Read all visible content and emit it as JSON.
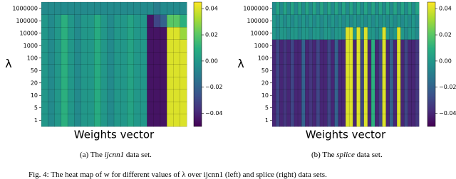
{
  "chart_data": [
    {
      "type": "heatmap",
      "x_label": "Weights vector",
      "y_label": "λ",
      "ycategories": [
        "1",
        "5",
        "10",
        "20",
        "50",
        "100",
        "1000",
        "10000",
        "100000",
        "1000000"
      ],
      "values": [
        [
          0,
          -0.005,
          0,
          0.01,
          0,
          -0.005,
          0,
          0,
          0.008,
          0,
          -0.005,
          0,
          0,
          0.005,
          0,
          0,
          -0.045,
          -0.045,
          -0.045,
          0.04,
          0.04,
          0.04
        ],
        [
          0,
          -0.005,
          0,
          0.01,
          0,
          -0.005,
          0,
          0,
          0.008,
          0,
          -0.005,
          0,
          0,
          0.005,
          0,
          0,
          -0.045,
          -0.045,
          -0.045,
          0.04,
          0.04,
          0.04
        ],
        [
          0,
          -0.005,
          0,
          0.01,
          0,
          -0.005,
          0,
          0,
          0.008,
          0,
          -0.005,
          0,
          0,
          0.005,
          0,
          0,
          -0.045,
          -0.045,
          -0.045,
          0.04,
          0.04,
          0.04
        ],
        [
          0,
          -0.005,
          0,
          0.01,
          0,
          -0.005,
          0,
          0,
          0.008,
          0,
          -0.005,
          0,
          0,
          0.005,
          0,
          0,
          -0.045,
          -0.045,
          -0.045,
          0.04,
          0.04,
          0.04
        ],
        [
          0,
          -0.005,
          0,
          0.01,
          0,
          -0.005,
          0,
          0,
          0.008,
          0,
          -0.005,
          0,
          0,
          0.005,
          0,
          0,
          -0.045,
          -0.045,
          -0.045,
          0.04,
          0.04,
          0.04
        ],
        [
          0,
          -0.005,
          0,
          0.01,
          0,
          -0.005,
          0,
          0,
          0.008,
          0,
          -0.005,
          0,
          0,
          0.005,
          0,
          0,
          -0.045,
          -0.045,
          -0.045,
          0.04,
          0.04,
          0.04
        ],
        [
          0,
          -0.005,
          0,
          0.01,
          0,
          -0.005,
          0,
          0,
          0.008,
          0,
          -0.005,
          0,
          0,
          0.005,
          0,
          0,
          -0.045,
          -0.045,
          -0.045,
          0.04,
          0.04,
          0.04
        ],
        [
          0,
          -0.005,
          0,
          0.01,
          0,
          -0.005,
          0,
          0,
          0.008,
          0,
          -0.005,
          0,
          0,
          0.005,
          0,
          0,
          -0.045,
          -0.045,
          -0.045,
          0.04,
          0.04,
          0.03
        ],
        [
          0,
          -0.005,
          0,
          0.01,
          0,
          -0.005,
          0,
          0,
          0.008,
          0,
          -0.005,
          0,
          0,
          0.005,
          0,
          0,
          -0.045,
          -0.03,
          -0.02,
          0.02,
          0.02,
          0.01
        ],
        [
          -0.005,
          -0.005,
          -0.005,
          -0.005,
          -0.005,
          -0.005,
          -0.005,
          -0.005,
          -0.005,
          -0.005,
          -0.005,
          -0.005,
          -0.005,
          -0.005,
          -0.005,
          -0.005,
          -0.005,
          -0.01,
          -0.005,
          -0.005,
          -0.005,
          -0.005
        ]
      ],
      "clim": [
        -0.05,
        0.045
      ],
      "cticks": [
        {
          "value": -0.04,
          "label": "−0.04"
        },
        {
          "value": -0.02,
          "label": "−0.02"
        },
        {
          "value": 0,
          "label": "0.00"
        },
        0.02,
        0.04
      ],
      "colormap": "viridis",
      "caption": [
        "(a) The ",
        "ijcnn1",
        " data set."
      ]
    },
    {
      "type": "heatmap",
      "x_label": "Weights vector",
      "y_label": "λ",
      "ycategories": [
        "1",
        "5",
        "10",
        "20",
        "50",
        "100",
        "1000",
        "10000",
        "100000",
        "1000000"
      ],
      "values": [
        [
          -0.04,
          -0.03,
          -0.04,
          -0.035,
          -0.04,
          -0.03,
          -0.04,
          -0.04,
          -0.02,
          -0.04,
          -0.035,
          -0.04,
          -0.03,
          -0.04,
          -0.04,
          -0.03,
          -0.04,
          -0.02,
          -0.04,
          -0.04,
          0.04,
          0.04,
          -0.04,
          0.04,
          -0.03,
          0.04,
          -0.04,
          0.01,
          -0.04,
          -0.03,
          0.04,
          -0.04,
          -0.02,
          -0.04,
          0.04,
          -0.04,
          -0.03,
          -0.04,
          -0.04,
          -0.035
        ],
        [
          -0.04,
          -0.03,
          -0.04,
          -0.035,
          -0.04,
          -0.03,
          -0.04,
          -0.04,
          -0.02,
          -0.04,
          -0.035,
          -0.04,
          -0.03,
          -0.04,
          -0.04,
          -0.03,
          -0.04,
          -0.02,
          -0.04,
          -0.04,
          0.04,
          0.04,
          -0.04,
          0.04,
          -0.03,
          0.04,
          -0.04,
          0.01,
          -0.04,
          -0.03,
          0.04,
          -0.04,
          -0.02,
          -0.04,
          0.04,
          -0.04,
          -0.03,
          -0.04,
          -0.04,
          -0.035
        ],
        [
          -0.04,
          -0.03,
          -0.04,
          -0.035,
          -0.04,
          -0.03,
          -0.04,
          -0.04,
          -0.02,
          -0.04,
          -0.035,
          -0.04,
          -0.03,
          -0.04,
          -0.04,
          -0.03,
          -0.04,
          -0.02,
          -0.04,
          -0.04,
          0.04,
          0.04,
          -0.04,
          0.04,
          -0.03,
          0.04,
          -0.04,
          0.01,
          -0.04,
          -0.03,
          0.04,
          -0.04,
          -0.02,
          -0.04,
          0.04,
          -0.04,
          -0.03,
          -0.04,
          -0.04,
          -0.035
        ],
        [
          -0.04,
          -0.03,
          -0.04,
          -0.035,
          -0.04,
          -0.03,
          -0.04,
          -0.04,
          -0.02,
          -0.04,
          -0.035,
          -0.04,
          -0.03,
          -0.04,
          -0.04,
          -0.03,
          -0.04,
          -0.02,
          -0.04,
          -0.04,
          0.04,
          0.04,
          -0.04,
          0.04,
          -0.03,
          0.04,
          -0.04,
          0.01,
          -0.04,
          -0.03,
          0.04,
          -0.04,
          -0.02,
          -0.04,
          0.04,
          -0.04,
          -0.03,
          -0.04,
          -0.04,
          -0.035
        ],
        [
          -0.04,
          -0.03,
          -0.04,
          -0.035,
          -0.04,
          -0.03,
          -0.04,
          -0.04,
          -0.02,
          -0.04,
          -0.035,
          -0.04,
          -0.03,
          -0.04,
          -0.04,
          -0.03,
          -0.04,
          -0.02,
          -0.04,
          -0.04,
          0.04,
          0.04,
          -0.04,
          0.04,
          -0.03,
          0.04,
          -0.04,
          0.01,
          -0.04,
          -0.03,
          0.04,
          -0.04,
          -0.02,
          -0.04,
          0.04,
          -0.04,
          -0.03,
          -0.04,
          -0.04,
          -0.035
        ],
        [
          -0.04,
          -0.03,
          -0.04,
          -0.035,
          -0.04,
          -0.03,
          -0.04,
          -0.04,
          -0.02,
          -0.04,
          -0.035,
          -0.04,
          -0.03,
          -0.04,
          -0.04,
          -0.03,
          -0.04,
          -0.02,
          -0.04,
          -0.04,
          0.04,
          0.04,
          -0.04,
          0.04,
          -0.03,
          0.04,
          -0.04,
          0.01,
          -0.04,
          -0.03,
          0.04,
          -0.04,
          -0.02,
          -0.04,
          0.04,
          -0.04,
          -0.03,
          -0.04,
          -0.04,
          -0.035
        ],
        [
          -0.04,
          -0.03,
          -0.04,
          -0.035,
          -0.04,
          -0.03,
          -0.04,
          -0.04,
          -0.02,
          -0.04,
          -0.035,
          -0.04,
          -0.03,
          -0.04,
          -0.04,
          -0.03,
          -0.04,
          -0.02,
          -0.04,
          -0.04,
          0.04,
          0.04,
          -0.04,
          0.04,
          -0.03,
          0.04,
          -0.04,
          0.01,
          -0.04,
          -0.03,
          0.04,
          -0.04,
          -0.02,
          -0.04,
          0.04,
          -0.04,
          -0.03,
          -0.04,
          -0.04,
          -0.035
        ],
        [
          0,
          -0.005,
          0,
          0,
          -0.005,
          0,
          0,
          -0.005,
          0,
          0,
          -0.005,
          0,
          0,
          -0.005,
          0,
          0,
          -0.005,
          0,
          0,
          -0.005,
          0.04,
          0.04,
          0,
          0.04,
          -0.005,
          0.04,
          0,
          0,
          -0.005,
          0,
          0.04,
          0,
          -0.005,
          0,
          0.04,
          0,
          -0.005,
          0,
          0,
          -0.005
        ],
        [
          0,
          -0.005,
          0,
          -0.005,
          0,
          -0.005,
          0,
          -0.005,
          0,
          -0.005,
          0,
          -0.005,
          0,
          -0.005,
          0,
          -0.005,
          0,
          -0.005,
          0,
          -0.005,
          0,
          -0.005,
          0,
          -0.005,
          0,
          -0.005,
          0,
          -0.005,
          0,
          -0.005,
          0,
          -0.005,
          0,
          -0.005,
          0,
          -0.005,
          0,
          -0.005,
          0,
          -0.005
        ],
        [
          -0.005,
          0.005,
          -0.005,
          0.005,
          -0.005,
          0.005,
          -0.005,
          0.005,
          -0.005,
          0.005,
          -0.005,
          0.005,
          -0.005,
          0.005,
          -0.005,
          0.005,
          -0.005,
          0.005,
          -0.005,
          0.005,
          -0.005,
          0.005,
          -0.005,
          0.005,
          -0.005,
          0.005,
          -0.005,
          0.005,
          -0.005,
          0.005,
          -0.005,
          0.005,
          -0.005,
          0.005,
          -0.005,
          0.005,
          -0.005,
          0.005,
          -0.005,
          0.005
        ]
      ],
      "clim": [
        -0.05,
        0.045
      ],
      "cticks": [
        {
          "value": -0.04,
          "label": "−0.04"
        },
        {
          "value": -0.02,
          "label": "−0.02"
        },
        {
          "value": 0,
          "label": "0.00"
        },
        0.02,
        0.04
      ],
      "colormap": "viridis",
      "caption": [
        "(b) The ",
        "splice",
        " data set."
      ]
    }
  ],
  "figure_caption": "Fig. 4: The heat map of w for different values of λ over ijcnn1 (left) and splice (right) data sets."
}
